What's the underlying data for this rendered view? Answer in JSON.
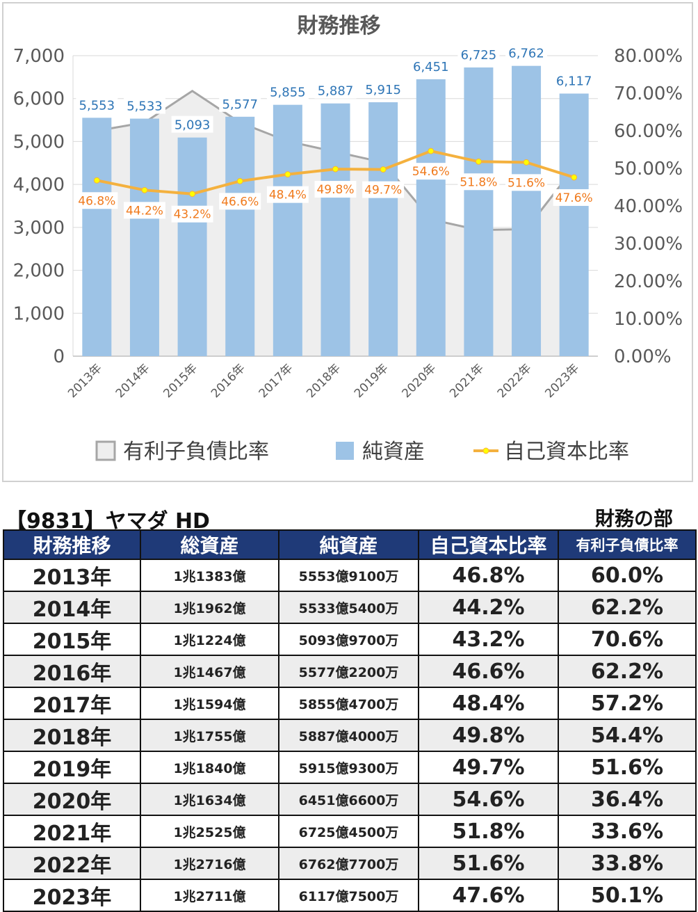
{
  "chart_data": {
    "type": "bar",
    "title": "財務推移",
    "categories": [
      "2013年",
      "2014年",
      "2015年",
      "2016年",
      "2017年",
      "2018年",
      "2019年",
      "2020年",
      "2021年",
      "2022年",
      "2023年"
    ],
    "y_left": {
      "ylim": [
        0,
        7000
      ],
      "ticks": [
        "0",
        "1,000",
        "2,000",
        "3,000",
        "4,000",
        "5,000",
        "6,000",
        "7,000"
      ]
    },
    "y_right": {
      "ylim": [
        0,
        0.8
      ],
      "ticks": [
        "0.00%",
        "10.00%",
        "20.00%",
        "30.00%",
        "40.00%",
        "50.00%",
        "60.00%",
        "70.00%",
        "80.00%"
      ]
    },
    "series": [
      {
        "name": "有利子負債比率",
        "type": "area",
        "axis": "right",
        "values": [
          0.6,
          0.622,
          0.706,
          0.622,
          0.572,
          0.544,
          0.516,
          0.364,
          0.336,
          0.338,
          0.501
        ]
      },
      {
        "name": "純資産",
        "type": "bar",
        "axis": "left",
        "values": [
          5553,
          5533,
          5093,
          5577,
          5855,
          5887,
          5915,
          6451,
          6725,
          6762,
          6117
        ],
        "labels": [
          "5,553",
          "5,533",
          "5,093",
          "5,577",
          "5,855",
          "5,887",
          "5,915",
          "6,451",
          "6,725",
          "6,762",
          "6,117"
        ]
      },
      {
        "name": "自己資本比率",
        "type": "line",
        "axis": "right",
        "values": [
          0.468,
          0.442,
          0.432,
          0.466,
          0.484,
          0.498,
          0.497,
          0.546,
          0.518,
          0.516,
          0.476
        ],
        "labels": [
          "46.8%",
          "44.2%",
          "43.2%",
          "46.6%",
          "48.4%",
          "49.8%",
          "49.7%",
          "54.6%",
          "51.8%",
          "51.6%",
          "47.6%"
        ]
      }
    ],
    "legend": "bottom",
    "grid": true,
    "colors": {
      "area_fill": "#eeeeee",
      "area_line": "#a6a6a6",
      "bar": "#9dc3e6",
      "line": "#f4b13e",
      "marker": "#ffff00",
      "bar_label": "#2e75b6",
      "line_label": "#f07a1c"
    }
  },
  "header": {
    "company": "【9831】ヤマダ HD",
    "section": "財務の部"
  },
  "table": {
    "headers": [
      "財務推移",
      "総資産",
      "純資産",
      "自己資本比率",
      "有利子負債比率"
    ],
    "rows": [
      [
        "2013年",
        "1兆1383億",
        "5553億9100万",
        "46.8%",
        "60.0%"
      ],
      [
        "2014年",
        "1兆1962億",
        "5533億5400万",
        "44.2%",
        "62.2%"
      ],
      [
        "2015年",
        "1兆1224億",
        "5093億9700万",
        "43.2%",
        "70.6%"
      ],
      [
        "2016年",
        "1兆1467億",
        "5577億2200万",
        "46.6%",
        "62.2%"
      ],
      [
        "2017年",
        "1兆1594億",
        "5855億4700万",
        "48.4%",
        "57.2%"
      ],
      [
        "2018年",
        "1兆1755億",
        "5887億4000万",
        "49.8%",
        "54.4%"
      ],
      [
        "2019年",
        "1兆1840億",
        "5915億9300万",
        "49.7%",
        "51.6%"
      ],
      [
        "2020年",
        "1兆1634億",
        "6451億6600万",
        "54.6%",
        "36.4%"
      ],
      [
        "2021年",
        "1兆2525億",
        "6725億4500万",
        "51.8%",
        "33.6%"
      ],
      [
        "2022年",
        "1兆2716億",
        "6762億7700万",
        "51.6%",
        "33.8%"
      ],
      [
        "2023年",
        "1兆2711億",
        "6117億7500万",
        "47.6%",
        "50.1%"
      ]
    ]
  }
}
